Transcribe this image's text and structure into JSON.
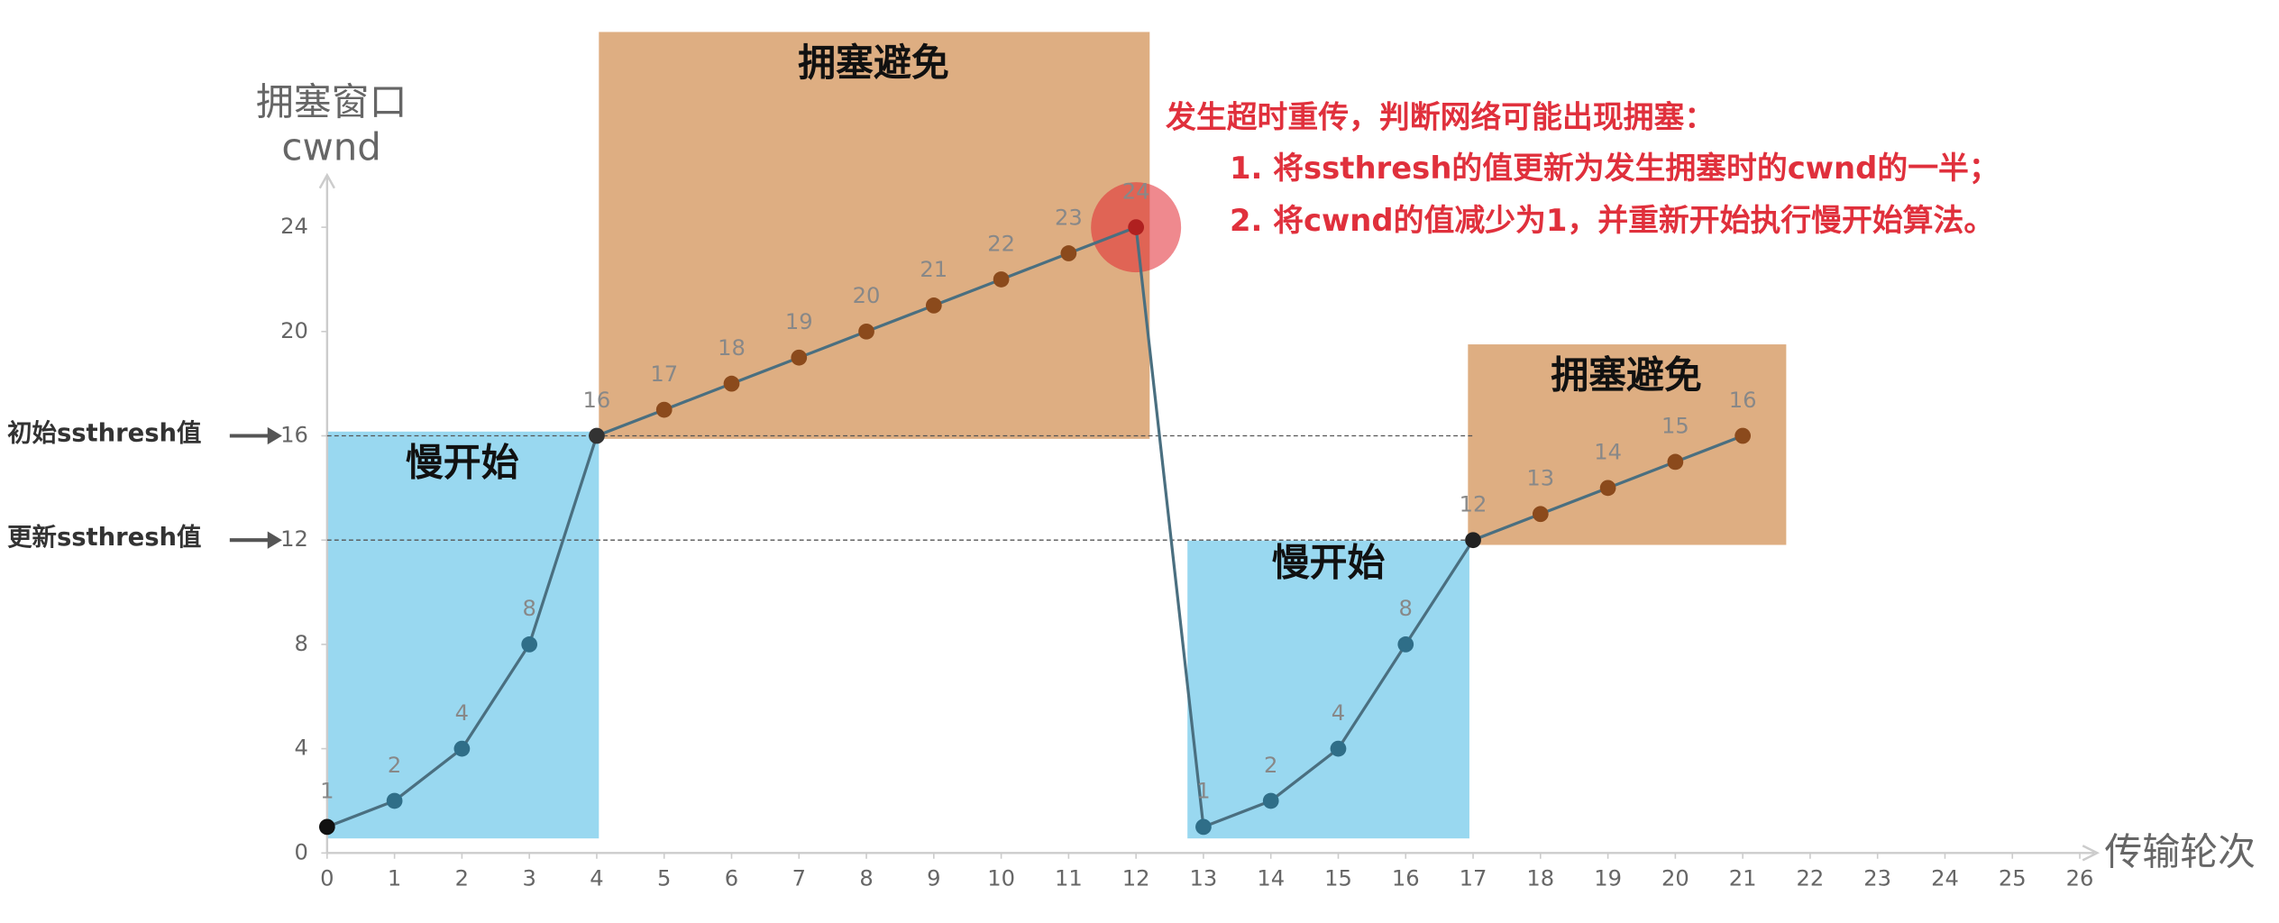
{
  "chart_data": {
    "type": "line",
    "ylabel": [
      "拥塞窗口",
      "cwnd"
    ],
    "xlabel": "传输轮次",
    "xlim": [
      0,
      26
    ],
    "xticks": [
      0,
      1,
      2,
      3,
      4,
      5,
      6,
      7,
      8,
      9,
      10,
      11,
      12,
      13,
      14,
      15,
      16,
      17,
      18,
      19,
      20,
      21,
      22,
      23,
      24,
      25,
      26
    ],
    "ylim": [
      0,
      26
    ],
    "yticks": [
      0,
      4,
      8,
      12,
      16,
      20,
      24
    ],
    "series": [
      {
        "color": "#4a6f80",
        "x": [
          0,
          1,
          2,
          3,
          4,
          5,
          6,
          7,
          8,
          9,
          10,
          11,
          12,
          13,
          14,
          15,
          16,
          17,
          18,
          19,
          20,
          21
        ],
        "values": [
          1,
          2,
          4,
          8,
          16,
          17,
          18,
          19,
          20,
          21,
          22,
          23,
          24,
          1,
          2,
          4,
          8,
          12,
          13,
          14,
          15,
          16
        ],
        "point_colors": [
          "#111",
          "#2f6e88",
          "#2f6e88",
          "#2f6e88",
          "#333",
          "#8b4a1c",
          "#8b4a1c",
          "#8b4a1c",
          "#8b4a1c",
          "#8b4a1c",
          "#8b4a1c",
          "#8b4a1c",
          "#b02020",
          "#2f6e88",
          "#2f6e88",
          "#2f6e88",
          "#2f6e88",
          "#222",
          "#8b4a1c",
          "#8b4a1c",
          "#8b4a1c",
          "#8b4a1c"
        ]
      }
    ],
    "thresholds": [
      {
        "label": "初始ssthresh值",
        "value": 16
      },
      {
        "label": "更新ssthresh值",
        "value": 12
      }
    ],
    "regions": [
      {
        "label": "慢开始",
        "color": "#99d8f0"
      },
      {
        "label": "拥塞避免",
        "color": "#deae82"
      },
      {
        "label": "慢开始",
        "color": "#99d8f0"
      },
      {
        "label": "拥塞避免",
        "color": "#deae82"
      }
    ],
    "note": [
      "发生超时重传，判断网络可能出现拥塞：",
      "1. 将ssthresh的值更新为发生拥塞时的cwnd的一半；",
      "2. 将cwnd的值减少为1，并重新开始执行慢开始算法。"
    ]
  }
}
